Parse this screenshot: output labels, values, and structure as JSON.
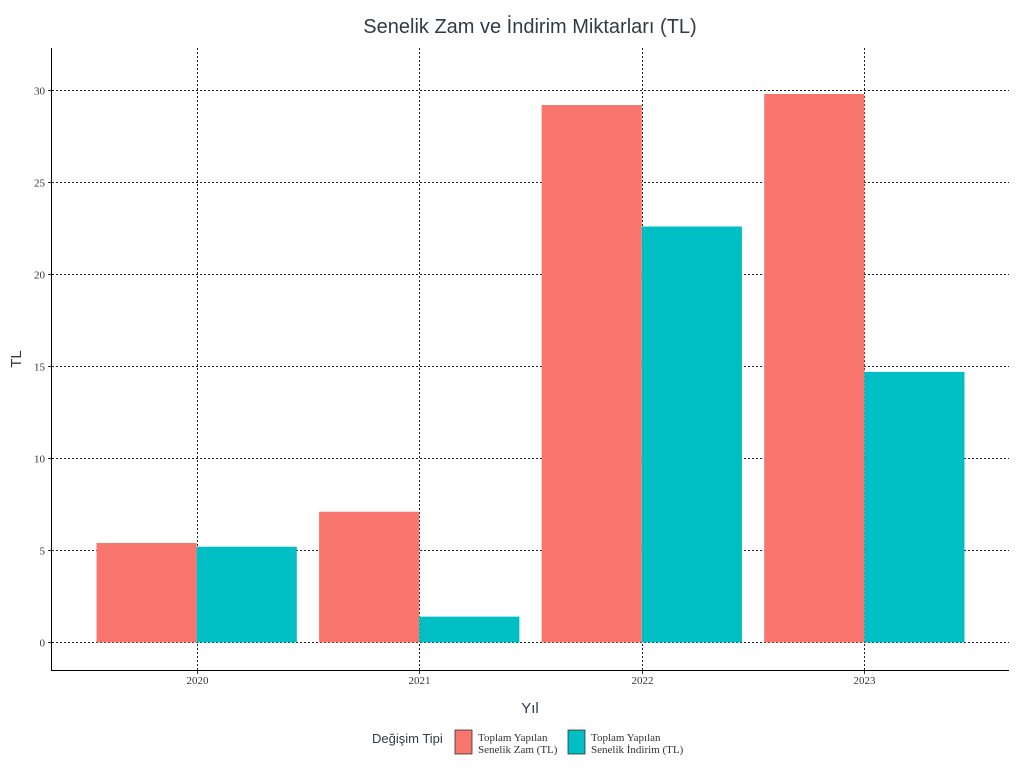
{
  "chart_data": {
    "type": "bar",
    "title": "Senelik Zam ve İndirim Miktarları (TL)",
    "xlabel": "Yıl",
    "ylabel": "TL",
    "categories": [
      "2020",
      "2021",
      "2022",
      "2023"
    ],
    "ylim": [
      -1.5,
      32.3
    ],
    "yticks": [
      0,
      5,
      10,
      15,
      20,
      25,
      30
    ],
    "grid": true,
    "legend": {
      "title": "Değişim Tipi",
      "placement": "bottom"
    },
    "series": [
      {
        "name": "Toplam Yapılan Senelik Zam (TL)",
        "label_lines": [
          "Toplam Yapılan",
          "Senelik Zam (TL)"
        ],
        "color": "#F8766D",
        "values": [
          5.4,
          7.1,
          29.2,
          29.8
        ]
      },
      {
        "name": "Toplam Yapılan Senelik İndirim (TL)",
        "label_lines": [
          "Toplam Yapılan",
          "Senelik İndirim (TL)"
        ],
        "color": "#00BFC4",
        "values": [
          5.2,
          1.4,
          22.6,
          14.7
        ]
      }
    ]
  }
}
